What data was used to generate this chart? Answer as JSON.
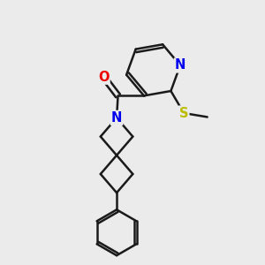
{
  "background_color": "#ebebeb",
  "bond_color": "#1a1a1a",
  "bond_width": 1.8,
  "atom_colors": {
    "N": "#0000ee",
    "O": "#ee0000",
    "S": "#bbbb00",
    "C": "#1a1a1a"
  },
  "font_size": 10.5,
  "fig_width": 3.0,
  "fig_height": 3.0,
  "dpi": 100
}
